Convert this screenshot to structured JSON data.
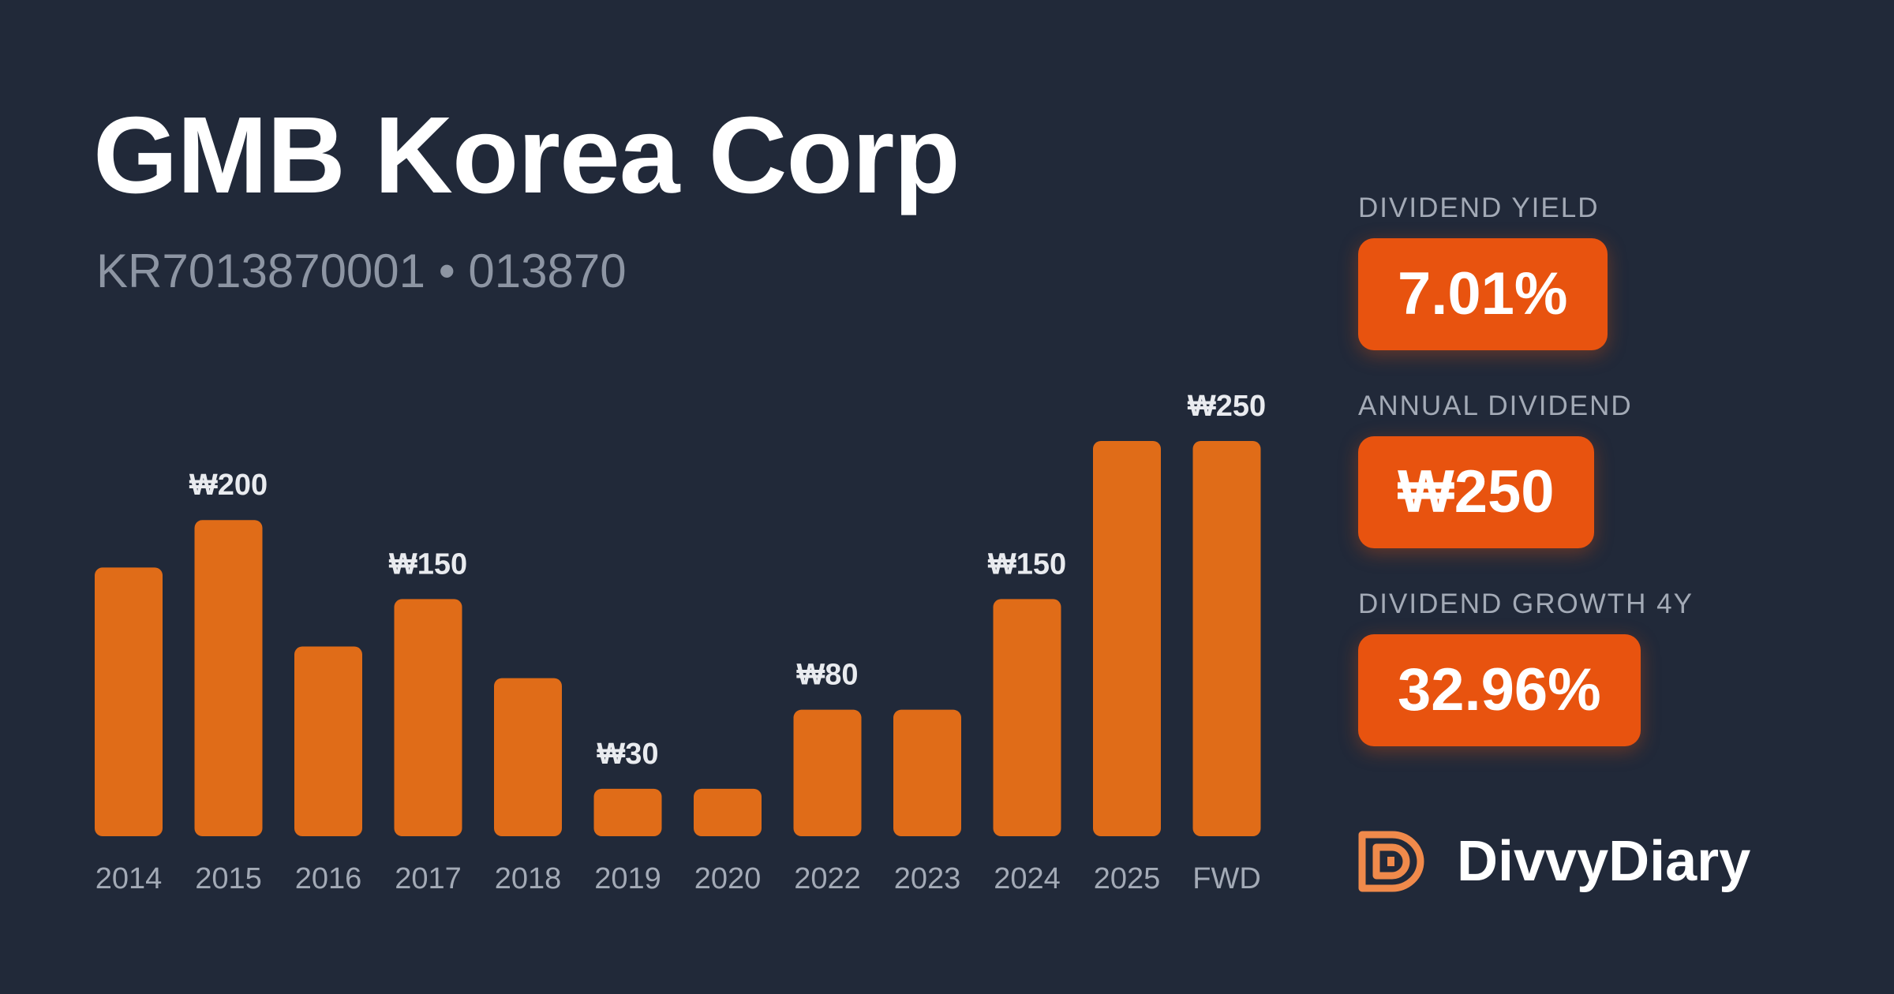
{
  "company": {
    "name": "GMB Korea Corp",
    "isin": "KR7013870001",
    "separator": "•",
    "ticker": "013870"
  },
  "metrics": [
    {
      "label": "DIVIDEND YIELD",
      "value": "7.01%"
    },
    {
      "label": "ANNUAL DIVIDEND",
      "value": "₩250"
    },
    {
      "label": "DIVIDEND GROWTH 4Y",
      "value": "32.96%"
    }
  ],
  "brand": {
    "name": "DivvyDiary",
    "logo_icon": "divvydiary-logo-icon"
  },
  "colors": {
    "background": "#212939",
    "bar": "#e06c18",
    "badge": "#e8530f",
    "text_muted": "#8d95a3"
  },
  "chart_data": {
    "type": "bar",
    "categories": [
      "2014",
      "2015",
      "2016",
      "2017",
      "2018",
      "2019",
      "2020",
      "2022",
      "2023",
      "2024",
      "2025",
      "FWD"
    ],
    "values": [
      170,
      200,
      120,
      150,
      100,
      30,
      30,
      80,
      80,
      150,
      250,
      250
    ],
    "data_labels": [
      "",
      "₩200",
      "",
      "₩150",
      "",
      "₩30",
      "",
      "₩80",
      "",
      "₩150",
      "",
      "₩250"
    ],
    "currency_symbol": "₩",
    "ylim": [
      0,
      250
    ],
    "grid": false,
    "legend": "none",
    "title": "",
    "xlabel": "",
    "ylabel": ""
  }
}
